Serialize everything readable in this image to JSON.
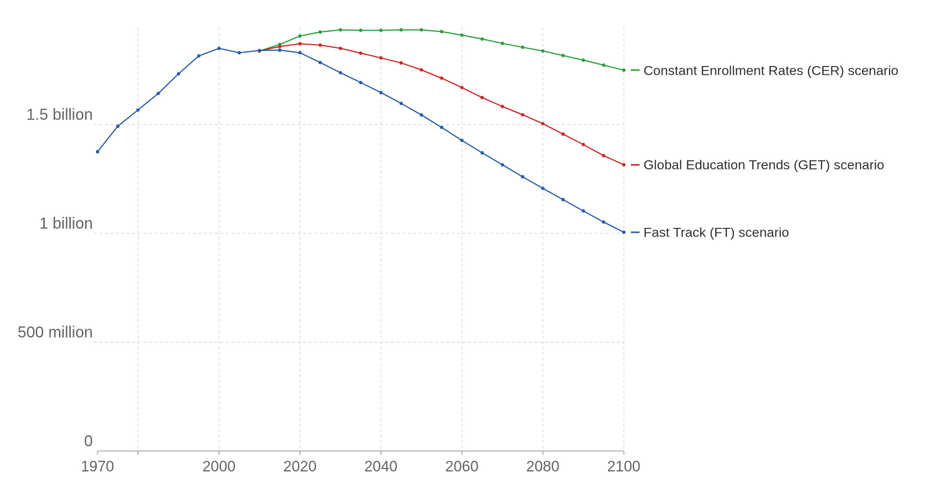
{
  "chart_data": {
    "type": "line",
    "x_ticks": [
      1970,
      2000,
      2020,
      2040,
      2060,
      2080,
      2100
    ],
    "x_grid": [
      1970,
      1980,
      2000,
      2020,
      2040,
      2060,
      2080,
      2100
    ],
    "xlim": [
      1970,
      2100
    ],
    "ylim": [
      0,
      1950000000
    ],
    "y_ticks": [
      {
        "value": 0,
        "label": "0"
      },
      {
        "value": 500000000,
        "label": "500 million"
      },
      {
        "value": 1000000000,
        "label": "1 billion"
      },
      {
        "value": 1500000000,
        "label": "1.5 billion"
      }
    ],
    "grid": true,
    "legend": "inline-right",
    "series": [
      {
        "name": "Constant Enrollment Rates (CER) scenario",
        "color": "#2e9e3e",
        "x": [
          2010,
          2015,
          2020,
          2025,
          2030,
          2035,
          2040,
          2045,
          2050,
          2055,
          2060,
          2065,
          2070,
          2075,
          2080,
          2085,
          2090,
          2095,
          2100
        ],
        "y": [
          1838000000,
          1868000000,
          1907000000,
          1925000000,
          1935000000,
          1933000000,
          1933000000,
          1935000000,
          1935000000,
          1927000000,
          1911000000,
          1893000000,
          1873000000,
          1855000000,
          1838000000,
          1817000000,
          1796000000,
          1773000000,
          1750000000
        ]
      },
      {
        "name": "Global Education Trends (GET) scenario",
        "color": "#cc2a2a",
        "x": [
          2010,
          2015,
          2020,
          2025,
          2030,
          2035,
          2040,
          2045,
          2050,
          2055,
          2060,
          2065,
          2070,
          2075,
          2080,
          2085,
          2090,
          2095,
          2100
        ],
        "y": [
          1838000000,
          1858000000,
          1871000000,
          1865000000,
          1850000000,
          1828000000,
          1806000000,
          1783000000,
          1751000000,
          1713000000,
          1670000000,
          1624000000,
          1583000000,
          1545000000,
          1504000000,
          1456000000,
          1408000000,
          1357000000,
          1315000000
        ]
      },
      {
        "name": "Fast Track (FT) scenario",
        "color": "#2d5fa6",
        "x": [
          1970,
          1975,
          1980,
          1985,
          1990,
          1995,
          2000,
          2005,
          2010,
          2015,
          2020,
          2025,
          2030,
          2035,
          2040,
          2045,
          2050,
          2055,
          2060,
          2065,
          2070,
          2075,
          2080,
          2085,
          2090,
          2095,
          2100
        ],
        "y": [
          1375000000,
          1492000000,
          1567000000,
          1643000000,
          1733000000,
          1815000000,
          1850000000,
          1830000000,
          1840000000,
          1842000000,
          1830000000,
          1785000000,
          1738000000,
          1693000000,
          1647000000,
          1597000000,
          1544000000,
          1487000000,
          1427000000,
          1370000000,
          1315000000,
          1260000000,
          1207000000,
          1155000000,
          1103000000,
          1052000000,
          1005000000
        ]
      }
    ]
  }
}
